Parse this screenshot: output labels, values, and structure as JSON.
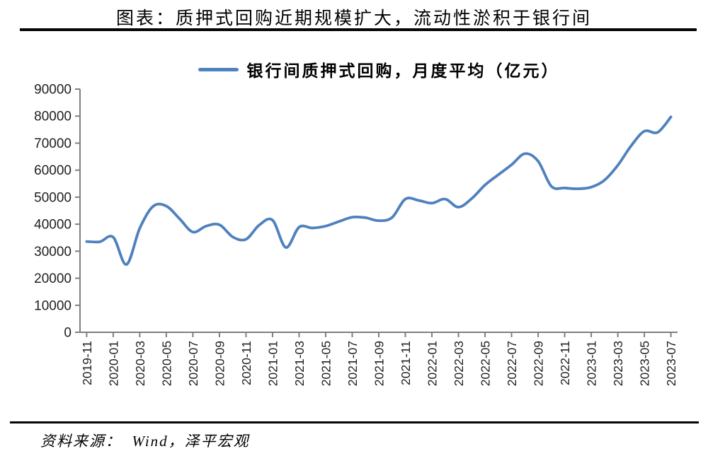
{
  "page": {
    "title": "图表：质押式回购近期规模扩大，流动性淤积于银行间",
    "source": "资料来源：  Wind，泽平宏观"
  },
  "chart_data": {
    "type": "line",
    "title": "图表：质押式回购近期规模扩大，流动性淤积于银行间",
    "legend_position": "top",
    "grid": false,
    "smooth": true,
    "line_color": "#4F81BD",
    "axis_color": "#7f7f7f",
    "ylim": [
      0,
      90000
    ],
    "y_ticks": [
      0,
      10000,
      20000,
      30000,
      40000,
      50000,
      60000,
      70000,
      80000,
      90000
    ],
    "x": [
      "2019-11",
      "2019-12",
      "2020-01",
      "2020-02",
      "2020-03",
      "2020-04",
      "2020-05",
      "2020-06",
      "2020-07",
      "2020-08",
      "2020-09",
      "2020-10",
      "2020-11",
      "2020-12",
      "2021-01",
      "2021-02",
      "2021-03",
      "2021-04",
      "2021-05",
      "2021-06",
      "2021-07",
      "2021-08",
      "2021-09",
      "2021-10",
      "2021-11",
      "2021-12",
      "2022-01",
      "2022-02",
      "2022-03",
      "2022-04",
      "2022-05",
      "2022-06",
      "2022-07",
      "2022-08",
      "2022-09",
      "2022-10",
      "2022-11",
      "2022-12",
      "2023-01",
      "2023-02",
      "2023-03",
      "2023-04",
      "2023-05",
      "2023-06",
      "2023-07"
    ],
    "x_tick_labels": [
      "2019-11",
      "2020-01",
      "2020-03",
      "2020-05",
      "2020-07",
      "2020-09",
      "2020-11",
      "2021-01",
      "2021-03",
      "2021-05",
      "2021-07",
      "2021-09",
      "2021-11",
      "2022-01",
      "2022-03",
      "2022-05",
      "2022-07",
      "2022-09",
      "2022-11",
      "2023-01",
      "2023-03",
      "2023-05",
      "2023-07"
    ],
    "series": [
      {
        "name": "银行间质押式回购，月度平均（亿元）",
        "values": [
          33600,
          33500,
          35200,
          25100,
          38500,
          46600,
          46700,
          42000,
          37100,
          39300,
          39800,
          35300,
          34400,
          39700,
          41500,
          31400,
          38900,
          38600,
          39300,
          41000,
          42600,
          42400,
          41300,
          42500,
          49300,
          48800,
          47800,
          49300,
          46300,
          49500,
          54500,
          58300,
          62000,
          66100,
          63300,
          54000,
          53400,
          53100,
          53700,
          56300,
          61800,
          69000,
          74400,
          74000,
          79700
        ]
      }
    ]
  }
}
